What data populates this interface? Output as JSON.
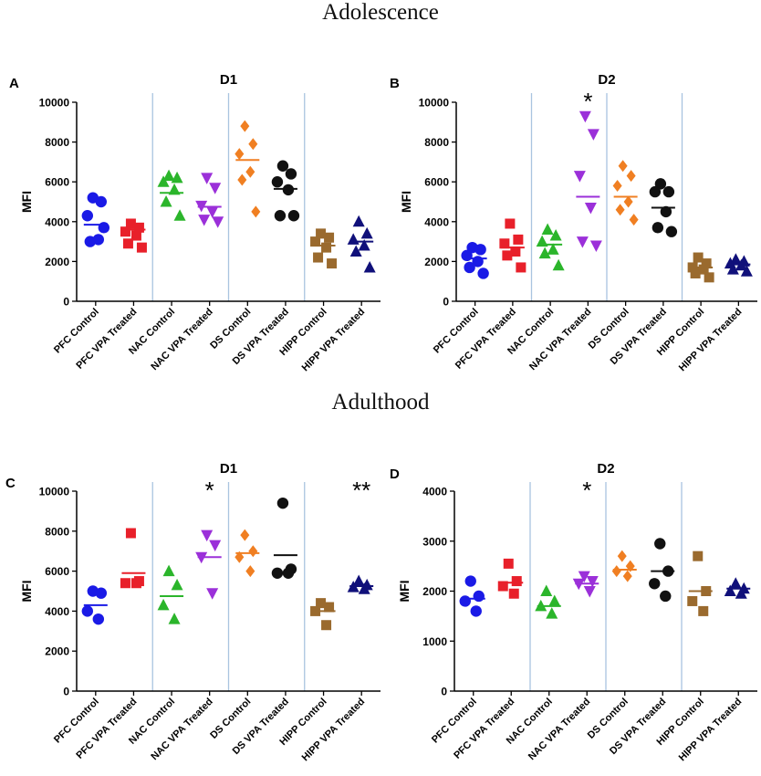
{
  "figure": {
    "section_top": "Adolescence",
    "section_bottom": "Adulthood"
  },
  "colors": {
    "PFC Control": "#1a1ae6",
    "PFC VPA Treated": "#e8202a",
    "NAC Control": "#2bb52b",
    "NAC VPA Treated": "#9b30d9",
    "DS Control": "#f07f22",
    "DS VPA Treated": "#111111",
    "HIPP Control": "#9a6a2e",
    "HIPP VPA Treated": "#10107a",
    "divider": "#a9c4e0",
    "axis": "#000000"
  },
  "chart_data": [
    {
      "panel": "A",
      "type": "scatter",
      "title": "D1",
      "ylabel": "MFI",
      "ylim": [
        0,
        10000
      ],
      "yticks": [
        0,
        2000,
        4000,
        6000,
        8000,
        10000
      ],
      "categories": [
        "PFC Control",
        "PFC VPA Treated",
        "NAC Control",
        "NAC VPA Treated",
        "DS Control",
        "DS VPA Treated",
        "HIPP Control",
        "HIPP VPA Treated"
      ],
      "markers": [
        "circle",
        "square",
        "triangle-up",
        "triangle-down",
        "diamond",
        "circle",
        "square",
        "triangle-up"
      ],
      "series": [
        {
          "name": "PFC Control",
          "values": [
            5200,
            5000,
            4300,
            3100,
            3000,
            3700
          ],
          "mean": 3850
        },
        {
          "name": "PFC VPA Treated",
          "values": [
            3900,
            3700,
            3500,
            3300,
            2900,
            2700
          ],
          "mean": 3600
        },
        {
          "name": "NAC Control",
          "values": [
            6300,
            6200,
            6000,
            5600,
            5000,
            4300
          ],
          "mean": 5450
        },
        {
          "name": "NAC VPA Treated",
          "values": [
            6200,
            5700,
            4800,
            4500,
            4100,
            4000
          ],
          "mean": 4750
        },
        {
          "name": "DS Control",
          "values": [
            8800,
            7900,
            7400,
            6500,
            6100,
            4500
          ],
          "mean": 7100
        },
        {
          "name": "DS VPA Treated",
          "values": [
            6800,
            6400,
            6000,
            5600,
            4300,
            4300
          ],
          "mean": 5650
        },
        {
          "name": "HIPP Control",
          "values": [
            3400,
            3200,
            3000,
            2700,
            2200,
            1900
          ],
          "mean": 2800
        },
        {
          "name": "HIPP VPA Treated",
          "values": [
            4000,
            3400,
            3100,
            2800,
            2500,
            1700
          ],
          "mean": 3000
        }
      ],
      "annotations": []
    },
    {
      "panel": "B",
      "type": "scatter",
      "title": "D2",
      "ylabel": "MFI",
      "ylim": [
        0,
        10000
      ],
      "yticks": [
        0,
        2000,
        4000,
        6000,
        8000,
        10000
      ],
      "categories": [
        "PFC Control",
        "PFC VPA Treated",
        "NAC Control",
        "NAC VPA Treated",
        "DS Control",
        "DS VPA Treated",
        "HIPP Control",
        "HIPP VPA Treated"
      ],
      "markers": [
        "circle",
        "square",
        "triangle-up",
        "triangle-down",
        "diamond",
        "circle",
        "square",
        "triangle-up"
      ],
      "series": [
        {
          "name": "PFC Control",
          "values": [
            2700,
            2600,
            2300,
            2000,
            1700,
            1400
          ],
          "mean": 2150
        },
        {
          "name": "PFC VPA Treated",
          "values": [
            3900,
            3100,
            2900,
            2500,
            2300,
            1700
          ],
          "mean": 2700
        },
        {
          "name": "NAC Control",
          "values": [
            3600,
            3300,
            3000,
            2600,
            2400,
            1800
          ],
          "mean": 2850
        },
        {
          "name": "NAC VPA Treated",
          "values": [
            9300,
            8400,
            6300,
            4700,
            3000,
            2800
          ],
          "mean": 5250
        },
        {
          "name": "DS Control",
          "values": [
            6800,
            6300,
            5800,
            5000,
            4600,
            4100
          ],
          "mean": 5250
        },
        {
          "name": "DS VPA Treated",
          "values": [
            5900,
            5500,
            5500,
            4500,
            3700,
            3500
          ],
          "mean": 4700
        },
        {
          "name": "HIPP Control",
          "values": [
            2200,
            1900,
            1700,
            1600,
            1400,
            1200
          ],
          "mean": 1700
        },
        {
          "name": "HIPP VPA Treated",
          "values": [
            2100,
            2000,
            1900,
            1800,
            1600,
            1500
          ],
          "mean": 1850
        }
      ],
      "annotations": [
        {
          "category": "NAC VPA Treated",
          "text": "*"
        }
      ]
    },
    {
      "panel": "C",
      "type": "scatter",
      "title": "D1",
      "ylabel": "MFI",
      "ylim": [
        0,
        10000
      ],
      "yticks": [
        0,
        2000,
        4000,
        6000,
        8000,
        10000
      ],
      "categories": [
        "PFC Control",
        "PFC VPA Treated",
        "NAC Control",
        "NAC VPA Treated",
        "DS Control",
        "DS VPA Treated",
        "HIPP Control",
        "HIPP VPA Treated"
      ],
      "markers": [
        "circle",
        "square",
        "triangle-up",
        "triangle-down",
        "diamond",
        "circle",
        "square",
        "triangle-up"
      ],
      "series": [
        {
          "name": "PFC Control",
          "values": [
            5000,
            4900,
            4000,
            3600
          ],
          "mean": 4300
        },
        {
          "name": "PFC VPA Treated",
          "values": [
            7900,
            5500,
            5400,
            5400
          ],
          "mean": 5900
        },
        {
          "name": "NAC Control",
          "values": [
            6000,
            5300,
            4300,
            3600
          ],
          "mean": 4750
        },
        {
          "name": "NAC VPA Treated",
          "values": [
            7800,
            7300,
            6700,
            4900
          ],
          "mean": 6700
        },
        {
          "name": "DS Control",
          "values": [
            7800,
            7000,
            6700,
            6000
          ],
          "mean": 6900
        },
        {
          "name": "DS VPA Treated",
          "values": [
            9400,
            6100,
            5900,
            5900
          ],
          "mean": 6800
        },
        {
          "name": "HIPP Control",
          "values": [
            4400,
            4200,
            4000,
            3300
          ],
          "mean": 4000
        },
        {
          "name": "HIPP VPA Treated",
          "values": [
            5500,
            5300,
            5200,
            5100
          ],
          "mean": 5250
        }
      ],
      "annotations": [
        {
          "category": "NAC VPA Treated",
          "text": "*"
        },
        {
          "category": "HIPP VPA Treated",
          "text": "**"
        }
      ]
    },
    {
      "panel": "D",
      "type": "scatter",
      "title": "D2",
      "ylabel": "MFI",
      "ylim": [
        0,
        4000
      ],
      "yticks": [
        0,
        1000,
        2000,
        3000,
        4000
      ],
      "categories": [
        "PFC Control",
        "PFC VPA Treated",
        "NAC Control",
        "NAC VPA Treated",
        "DS Control",
        "DS VPA Treated",
        "HIPP Control",
        "HIPP VPA Treated"
      ],
      "markers": [
        "circle",
        "square",
        "triangle-up",
        "triangle-down",
        "diamond",
        "circle",
        "square",
        "triangle-up"
      ],
      "series": [
        {
          "name": "PFC Control",
          "values": [
            2200,
            1900,
            1800,
            1600
          ],
          "mean": 1850
        },
        {
          "name": "PFC VPA Treated",
          "values": [
            2550,
            2200,
            2100,
            1950
          ],
          "mean": 2170
        },
        {
          "name": "NAC Control",
          "values": [
            2000,
            1800,
            1700,
            1550
          ],
          "mean": 1700
        },
        {
          "name": "NAC VPA Treated",
          "values": [
            2300,
            2200,
            2150,
            2000
          ],
          "mean": 2150
        },
        {
          "name": "DS Control",
          "values": [
            2700,
            2500,
            2400,
            2300
          ],
          "mean": 2430
        },
        {
          "name": "DS VPA Treated",
          "values": [
            2950,
            2400,
            2150,
            1900
          ],
          "mean": 2400
        },
        {
          "name": "HIPP Control",
          "values": [
            2700,
            2000,
            1800,
            1600
          ],
          "mean": 2000
        },
        {
          "name": "HIPP VPA Treated",
          "values": [
            2150,
            2050,
            2000,
            1950
          ],
          "mean": 2050
        }
      ],
      "annotations": [
        {
          "category": "NAC VPA Treated",
          "text": "*"
        }
      ]
    }
  ]
}
